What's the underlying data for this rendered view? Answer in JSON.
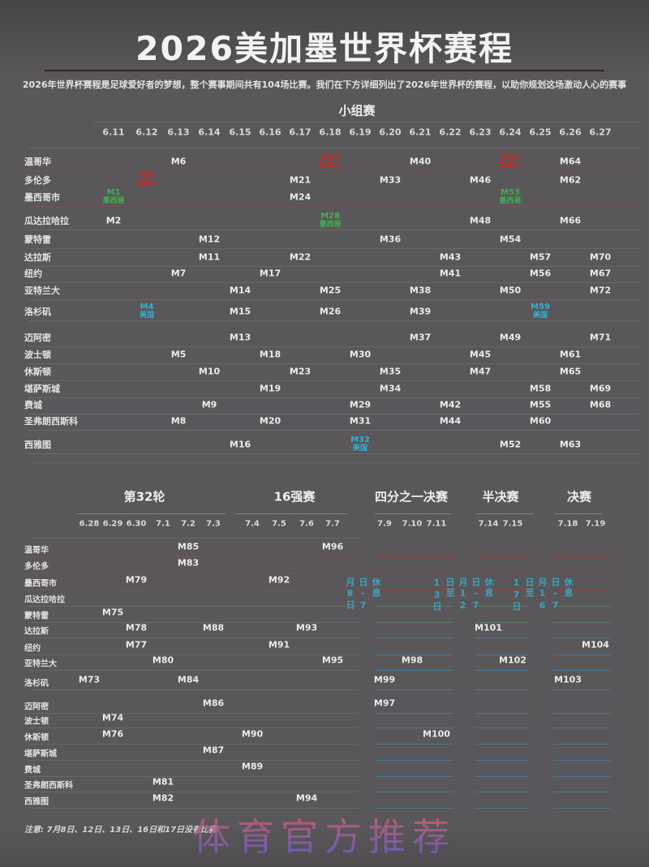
{
  "header": {
    "title": "2026美加墨世界杯赛程",
    "subtitle": "2026年世界杯赛程是足球爱好者的梦想，整个赛事期间共有104场比赛。我们在下方详细列出了2026年世界杯的赛程，以助你规划这场激动人心的赛事"
  },
  "footer": {
    "note": "注意: 7月8日、12日、13日、16日和17日没有比赛"
  },
  "watermark": "体育官方推荐",
  "colors": {
    "background": "#595759",
    "text": "#eaeaea",
    "title_underline": "#342323",
    "line_gray": "#6b696b",
    "line_red_tint": "#745657",
    "line_green_tint": "#667264",
    "line_teal_tint": "#62737a",
    "line_red": "#9c3a3a",
    "line_green": "#5f7f66",
    "line_blue": "#437ea3",
    "canada": "#c22c2c",
    "mexico": "#3fae4d",
    "usa": "#31aed6",
    "rest_day": "#3da2b8"
  },
  "chart_data": {
    "type": "table",
    "group_stage": {
      "title": "小组赛",
      "dates": [
        "6.11",
        "6.12",
        "6.13",
        "6.14",
        "6.15",
        "6.16",
        "6.17",
        "6.18",
        "6.19",
        "6.20",
        "6.21",
        "6.22",
        "6.23",
        "6.24",
        "6.25",
        "6.26",
        "6.27"
      ],
      "rows": [
        {
          "city": "温哥华",
          "matches": [
            {
              "match": "M6",
              "date": "6.13"
            },
            {
              "match": "M27",
              "date": "6.18",
              "host": "加拿大"
            },
            {
              "match": "M40",
              "date": "6.21"
            },
            {
              "match": "M51",
              "date": "6.24",
              "host": "加拿大"
            },
            {
              "match": "M64",
              "date": "6.26"
            }
          ]
        },
        {
          "city": "多伦多",
          "matches": [
            {
              "match": "M3",
              "date": "6.12",
              "host": "加拿大"
            },
            {
              "match": "M21",
              "date": "6.17"
            },
            {
              "match": "M33",
              "date": "6.20"
            },
            {
              "match": "M46",
              "date": "6.23"
            },
            {
              "match": "M62",
              "date": "6.26"
            }
          ]
        },
        {
          "city": "墨西哥市",
          "matches": [
            {
              "match": "M1",
              "date": "6.11",
              "host": "墨西哥"
            },
            {
              "match": "M24",
              "date": "6.17"
            },
            {
              "match": "M53",
              "date": "6.24",
              "host": "墨西哥"
            }
          ]
        },
        {
          "city": "瓜达拉哈拉",
          "matches": [
            {
              "match": "M2",
              "date": "6.11"
            },
            {
              "match": "M28",
              "date": "6.18",
              "host": "墨西哥"
            },
            {
              "match": "M48",
              "date": "6.23"
            },
            {
              "match": "M66",
              "date": "6.26"
            }
          ]
        },
        {
          "city": "蒙特雷",
          "matches": [
            {
              "match": "M12",
              "date": "6.14"
            },
            {
              "match": "M36",
              "date": "6.20"
            },
            {
              "match": "M54",
              "date": "6.24"
            }
          ]
        },
        {
          "city": "达拉斯",
          "matches": [
            {
              "match": "M11",
              "date": "6.14"
            },
            {
              "match": "M22",
              "date": "6.17"
            },
            {
              "match": "M43",
              "date": "6.22"
            },
            {
              "match": "M57",
              "date": "6.25"
            },
            {
              "match": "M70",
              "date": "6.27"
            }
          ]
        },
        {
          "city": "纽约",
          "matches": [
            {
              "match": "M7",
              "date": "6.13"
            },
            {
              "match": "M17",
              "date": "6.16"
            },
            {
              "match": "M41",
              "date": "6.22"
            },
            {
              "match": "M56",
              "date": "6.25"
            },
            {
              "match": "M67",
              "date": "6.27"
            }
          ]
        },
        {
          "city": "亚特兰大",
          "matches": [
            {
              "match": "M14",
              "date": "6.15"
            },
            {
              "match": "M25",
              "date": "6.18"
            },
            {
              "match": "M38",
              "date": "6.21"
            },
            {
              "match": "M50",
              "date": "6.24"
            },
            {
              "match": "M72",
              "date": "6.27"
            }
          ]
        },
        {
          "city": "洛杉矶",
          "matches": [
            {
              "match": "M4",
              "date": "6.12",
              "host": "美国"
            },
            {
              "match": "M15",
              "date": "6.15"
            },
            {
              "match": "M26",
              "date": "6.18"
            },
            {
              "match": "M39",
              "date": "6.21"
            },
            {
              "match": "M59",
              "date": "6.25",
              "host": "美国"
            }
          ]
        },
        {
          "city": "迈阿密",
          "matches": [
            {
              "match": "M13",
              "date": "6.15"
            },
            {
              "match": "M37",
              "date": "6.21"
            },
            {
              "match": "M49",
              "date": "6.24"
            },
            {
              "match": "M71",
              "date": "6.27"
            }
          ]
        },
        {
          "city": "波士顿",
          "matches": [
            {
              "match": "M5",
              "date": "6.13"
            },
            {
              "match": "M18",
              "date": "6.16"
            },
            {
              "match": "M30",
              "date": "6.19"
            },
            {
              "match": "M45",
              "date": "6.23"
            },
            {
              "match": "M61",
              "date": "6.26"
            }
          ]
        },
        {
          "city": "休斯顿",
          "matches": [
            {
              "match": "M10",
              "date": "6.14"
            },
            {
              "match": "M23",
              "date": "6.17"
            },
            {
              "match": "M35",
              "date": "6.20"
            },
            {
              "match": "M47",
              "date": "6.23"
            },
            {
              "match": "M65",
              "date": "6.26"
            }
          ]
        },
        {
          "city": "堪萨斯城",
          "matches": [
            {
              "match": "M19",
              "date": "6.16"
            },
            {
              "match": "M34",
              "date": "6.20"
            },
            {
              "match": "M58",
              "date": "6.25"
            },
            {
              "match": "M69",
              "date": "6.27"
            }
          ]
        },
        {
          "city": "费城",
          "matches": [
            {
              "match": "M9",
              "date": "6.14"
            },
            {
              "match": "M29",
              "date": "6.19"
            },
            {
              "match": "M42",
              "date": "6.22"
            },
            {
              "match": "M55",
              "date": "6.25"
            },
            {
              "match": "M68",
              "date": "6.27"
            }
          ]
        },
        {
          "city": "圣弗朗西斯科",
          "matches": [
            {
              "match": "M8",
              "date": "6.13"
            },
            {
              "match": "M20",
              "date": "6.16"
            },
            {
              "match": "M31",
              "date": "6.19"
            },
            {
              "match": "M44",
              "date": "6.22"
            },
            {
              "match": "M60",
              "date": "6.25"
            }
          ]
        },
        {
          "city": "西雅图",
          "matches": [
            {
              "match": "M16",
              "date": "6.15"
            },
            {
              "match": "M32",
              "date": "6.19",
              "host": "美国"
            },
            {
              "match": "M52",
              "date": "6.24"
            },
            {
              "match": "M63",
              "date": "6.26"
            }
          ]
        }
      ]
    },
    "knockout": {
      "sections": [
        {
          "title": "第32轮",
          "dates": [
            "6.28",
            "6.29",
            "6.30",
            "7.1",
            "7.2",
            "7.3"
          ]
        },
        {
          "title": "16强赛",
          "dates": [
            "7.4",
            "7.5",
            "7.6",
            "7.7"
          ]
        },
        {
          "title": "四分之一决赛",
          "dates": [
            "7.9",
            "7.10",
            "7.11"
          ]
        },
        {
          "title": "半决赛",
          "dates": [
            "7.14",
            "7.15"
          ]
        },
        {
          "title": "决赛",
          "dates": [
            "7.18",
            "7.19"
          ]
        }
      ],
      "rows": [
        {
          "city": "温哥华",
          "matches": [
            {
              "match": "M85",
              "date": "7.2"
            },
            {
              "match": "M96",
              "date": "7.7"
            }
          ]
        },
        {
          "city": "多伦多",
          "matches": [
            {
              "match": "M83",
              "date": "7.2"
            }
          ]
        },
        {
          "city": "墨西哥市",
          "matches": [
            {
              "match": "M79",
              "date": "6.30"
            },
            {
              "match": "M92",
              "date": "7.5"
            }
          ]
        },
        {
          "city": "瓜达拉哈拉",
          "matches": []
        },
        {
          "city": "蒙特雷",
          "matches": [
            {
              "match": "M75",
              "date": "6.29"
            }
          ]
        },
        {
          "city": "达拉斯",
          "matches": [
            {
              "match": "M78",
              "date": "6.30"
            },
            {
              "match": "M88",
              "date": "7.3"
            },
            {
              "match": "M93",
              "date": "7.6"
            },
            {
              "match": "M101",
              "date": "7.14"
            }
          ]
        },
        {
          "city": "纽约",
          "matches": [
            {
              "match": "M77",
              "date": "6.30"
            },
            {
              "match": "M91",
              "date": "7.5"
            },
            {
              "match": "M104",
              "date": "7.19"
            }
          ]
        },
        {
          "city": "亚特兰大",
          "matches": [
            {
              "match": "M80",
              "date": "7.1"
            },
            {
              "match": "M95",
              "date": "7.7"
            },
            {
              "match": "M98",
              "date": "7.10"
            },
            {
              "match": "M102",
              "date": "7.15"
            }
          ]
        },
        {
          "city": "洛杉矶",
          "matches": [
            {
              "match": "M73",
              "date": "6.28"
            },
            {
              "match": "M84",
              "date": "7.2"
            },
            {
              "match": "M99",
              "date": "7.9"
            },
            {
              "match": "M103",
              "date": "7.18"
            }
          ]
        },
        {
          "city": "迈阿密",
          "matches": [
            {
              "match": "M86",
              "date": "7.3"
            },
            {
              "match": "M97",
              "date": "7.9"
            }
          ]
        },
        {
          "city": "波士顿",
          "matches": [
            {
              "match": "M74",
              "date": "6.29"
            }
          ]
        },
        {
          "city": "休斯顿",
          "matches": [
            {
              "match": "M76",
              "date": "6.29"
            },
            {
              "match": "M90",
              "date": "7.4"
            },
            {
              "match": "M100",
              "date": "7.11"
            }
          ]
        },
        {
          "city": "堪萨斯城",
          "matches": [
            {
              "match": "M87",
              "date": "7.3"
            }
          ]
        },
        {
          "city": "费城",
          "matches": [
            {
              "match": "M89",
              "date": "7.4"
            }
          ]
        },
        {
          "city": "圣弗朗西斯科",
          "matches": [
            {
              "match": "M81",
              "date": "7.1"
            }
          ]
        },
        {
          "city": "西雅图",
          "matches": [
            {
              "match": "M82",
              "date": "7.1"
            },
            {
              "match": "M94",
              "date": "7.6"
            }
          ]
        }
      ],
      "rest_days": [
        "休息日-7月8日",
        "休息日-7月12日至13日",
        "休息日-7月16日至17日"
      ]
    }
  }
}
